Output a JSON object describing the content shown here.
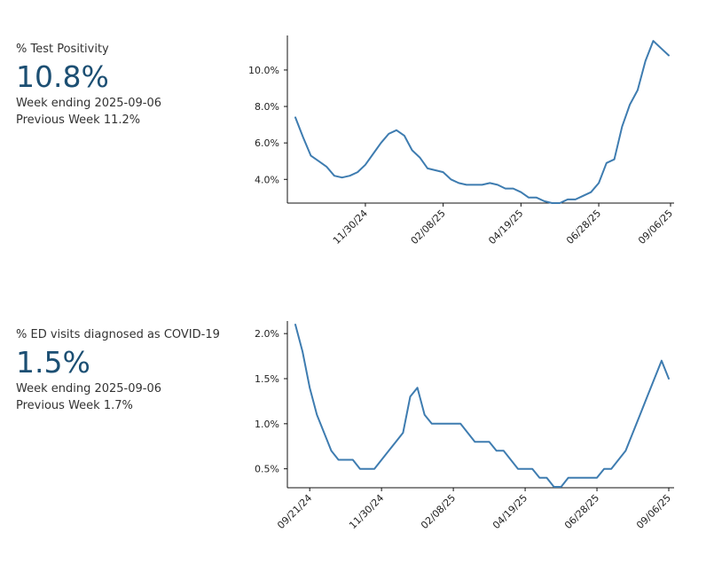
{
  "colors": {
    "line": "#3e7cb0",
    "value": "#1c4f73"
  },
  "chart_data": [
    {
      "type": "line",
      "title": "% Test Positivity",
      "headline_value": "10.8%",
      "week_ending": "Week ending 2025-09-06",
      "previous_week": "Previous Week 11.2%",
      "xlabel": "",
      "ylabel": "",
      "ylim": [
        2.7,
        11.7
      ],
      "xlim": [
        0,
        52
      ],
      "yticks": [
        {
          "value": 4.0,
          "label": "4.0%"
        },
        {
          "value": 6.0,
          "label": "6.0%"
        },
        {
          "value": 8.0,
          "label": "8.0%"
        },
        {
          "value": 10.0,
          "label": "10.0%"
        }
      ],
      "xticks": [
        {
          "index": 9,
          "label": "11/30/24"
        },
        {
          "index": 19,
          "label": "02/08/25"
        },
        {
          "index": 29,
          "label": "04/19/25"
        },
        {
          "index": 39,
          "label": "06/28/25"
        },
        {
          "index": 49,
          "label": "09/06/25"
        }
      ],
      "series": [
        {
          "name": "% Test Positivity",
          "values": [
            7.4,
            6.3,
            5.3,
            5.0,
            4.7,
            4.2,
            4.1,
            4.2,
            4.4,
            4.8,
            5.4,
            6.0,
            6.5,
            6.7,
            6.4,
            5.6,
            5.2,
            4.6,
            4.5,
            4.4,
            4.0,
            3.8,
            3.7,
            3.7,
            3.7,
            3.8,
            3.7,
            3.5,
            3.5,
            3.3,
            3.0,
            3.0,
            2.8,
            2.7,
            2.7,
            2.9,
            2.9,
            3.1,
            3.3,
            3.8,
            4.9,
            5.1,
            6.9,
            8.1,
            8.9,
            10.5,
            11.6,
            11.2,
            10.8
          ]
        }
      ]
    },
    {
      "type": "line",
      "title": "% ED visits diagnosed as COVID-19",
      "headline_value": "1.5%",
      "week_ending": "Week ending 2025-09-06",
      "previous_week": "Previous Week 1.7%",
      "xlabel": "",
      "ylabel": "",
      "ylim": [
        0.29,
        2.1
      ],
      "xlim": [
        0,
        50
      ],
      "yticks": [
        {
          "value": 0.5,
          "label": "0.5%"
        },
        {
          "value": 1.0,
          "label": "1.0%"
        },
        {
          "value": 1.5,
          "label": "1.5%"
        },
        {
          "value": 2.0,
          "label": "2.0%"
        }
      ],
      "xticks": [
        {
          "index": 2,
          "label": "09/21/24"
        },
        {
          "index": 12,
          "label": "11/30/24"
        },
        {
          "index": 22,
          "label": "02/08/25"
        },
        {
          "index": 32,
          "label": "04/19/25"
        },
        {
          "index": 42,
          "label": "06/28/25"
        },
        {
          "index": 52,
          "label": "09/06/25"
        }
      ],
      "series": [
        {
          "name": "% ED visits diagnosed as COVID-19",
          "values": [
            2.1,
            1.8,
            1.4,
            1.1,
            0.9,
            0.7,
            0.6,
            0.6,
            0.6,
            0.5,
            0.5,
            0.5,
            0.6,
            0.7,
            0.8,
            0.9,
            1.3,
            1.4,
            1.1,
            1.0,
            1.0,
            1.0,
            1.0,
            1.0,
            0.9,
            0.8,
            0.8,
            0.8,
            0.7,
            0.7,
            0.6,
            0.5,
            0.5,
            0.5,
            0.4,
            0.4,
            0.3,
            0.3,
            0.4,
            0.4,
            0.4,
            0.4,
            0.4,
            0.5,
            0.5,
            0.6,
            0.7,
            0.9,
            1.1,
            1.3,
            1.5,
            1.7,
            1.5
          ]
        }
      ]
    }
  ]
}
